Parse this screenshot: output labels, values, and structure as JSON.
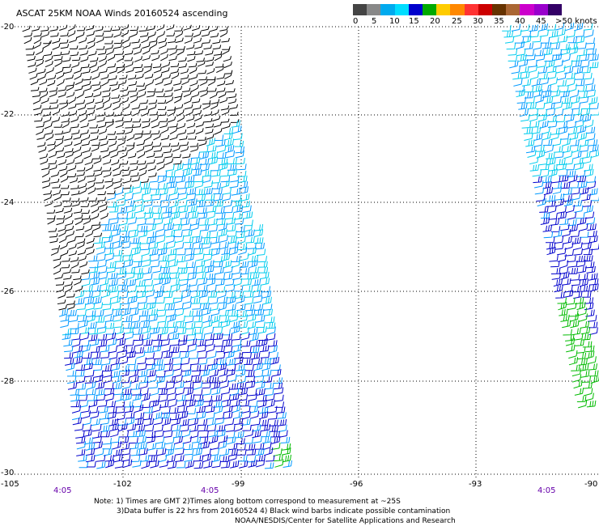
{
  "title": "ASCAT 25KM NOAA Winds 20160524 ascending",
  "colorbar": {
    "segments": [
      "#444444",
      "#888888",
      "#00aaee",
      "#00ddff",
      "#0000cc",
      "#00aa00",
      "#ffcc00",
      "#ff8800",
      "#ff3333",
      "#cc0000",
      "#663300",
      "#aa6633",
      "#cc00cc",
      "#9900cc",
      "#330066"
    ],
    "ticks": [
      "0",
      "5",
      "10",
      "15",
      "20",
      "25",
      "30",
      "35",
      "40",
      "45",
      ">50 knots"
    ]
  },
  "chart_data": {
    "type": "map",
    "lat_ticks": [
      "-20",
      "-22",
      "-24",
      "-26",
      "-28",
      "-30"
    ],
    "lon_ticks": [
      "-105",
      "-102",
      "-99",
      "-96",
      "-93",
      "-90"
    ],
    "time_labels": [
      "4:05",
      "4:05",
      "4:05"
    ],
    "barb_colors": {
      "contaminated": "#000000",
      "light_cyan": "#00ccee",
      "cyan": "#0099ff",
      "blue": "#0000cc",
      "green": "#00bb00"
    }
  },
  "notes": {
    "line1": "Note: 1) Times are GMT  2)Times along bottom correspond to measurement at ~25S",
    "line2": "3)Data buffer is 22 hrs from 20160524  4) Black wind barbs indicate possible contamination",
    "line3": "NOAA/NESDIS/Center for Satellite Applications and Research"
  }
}
